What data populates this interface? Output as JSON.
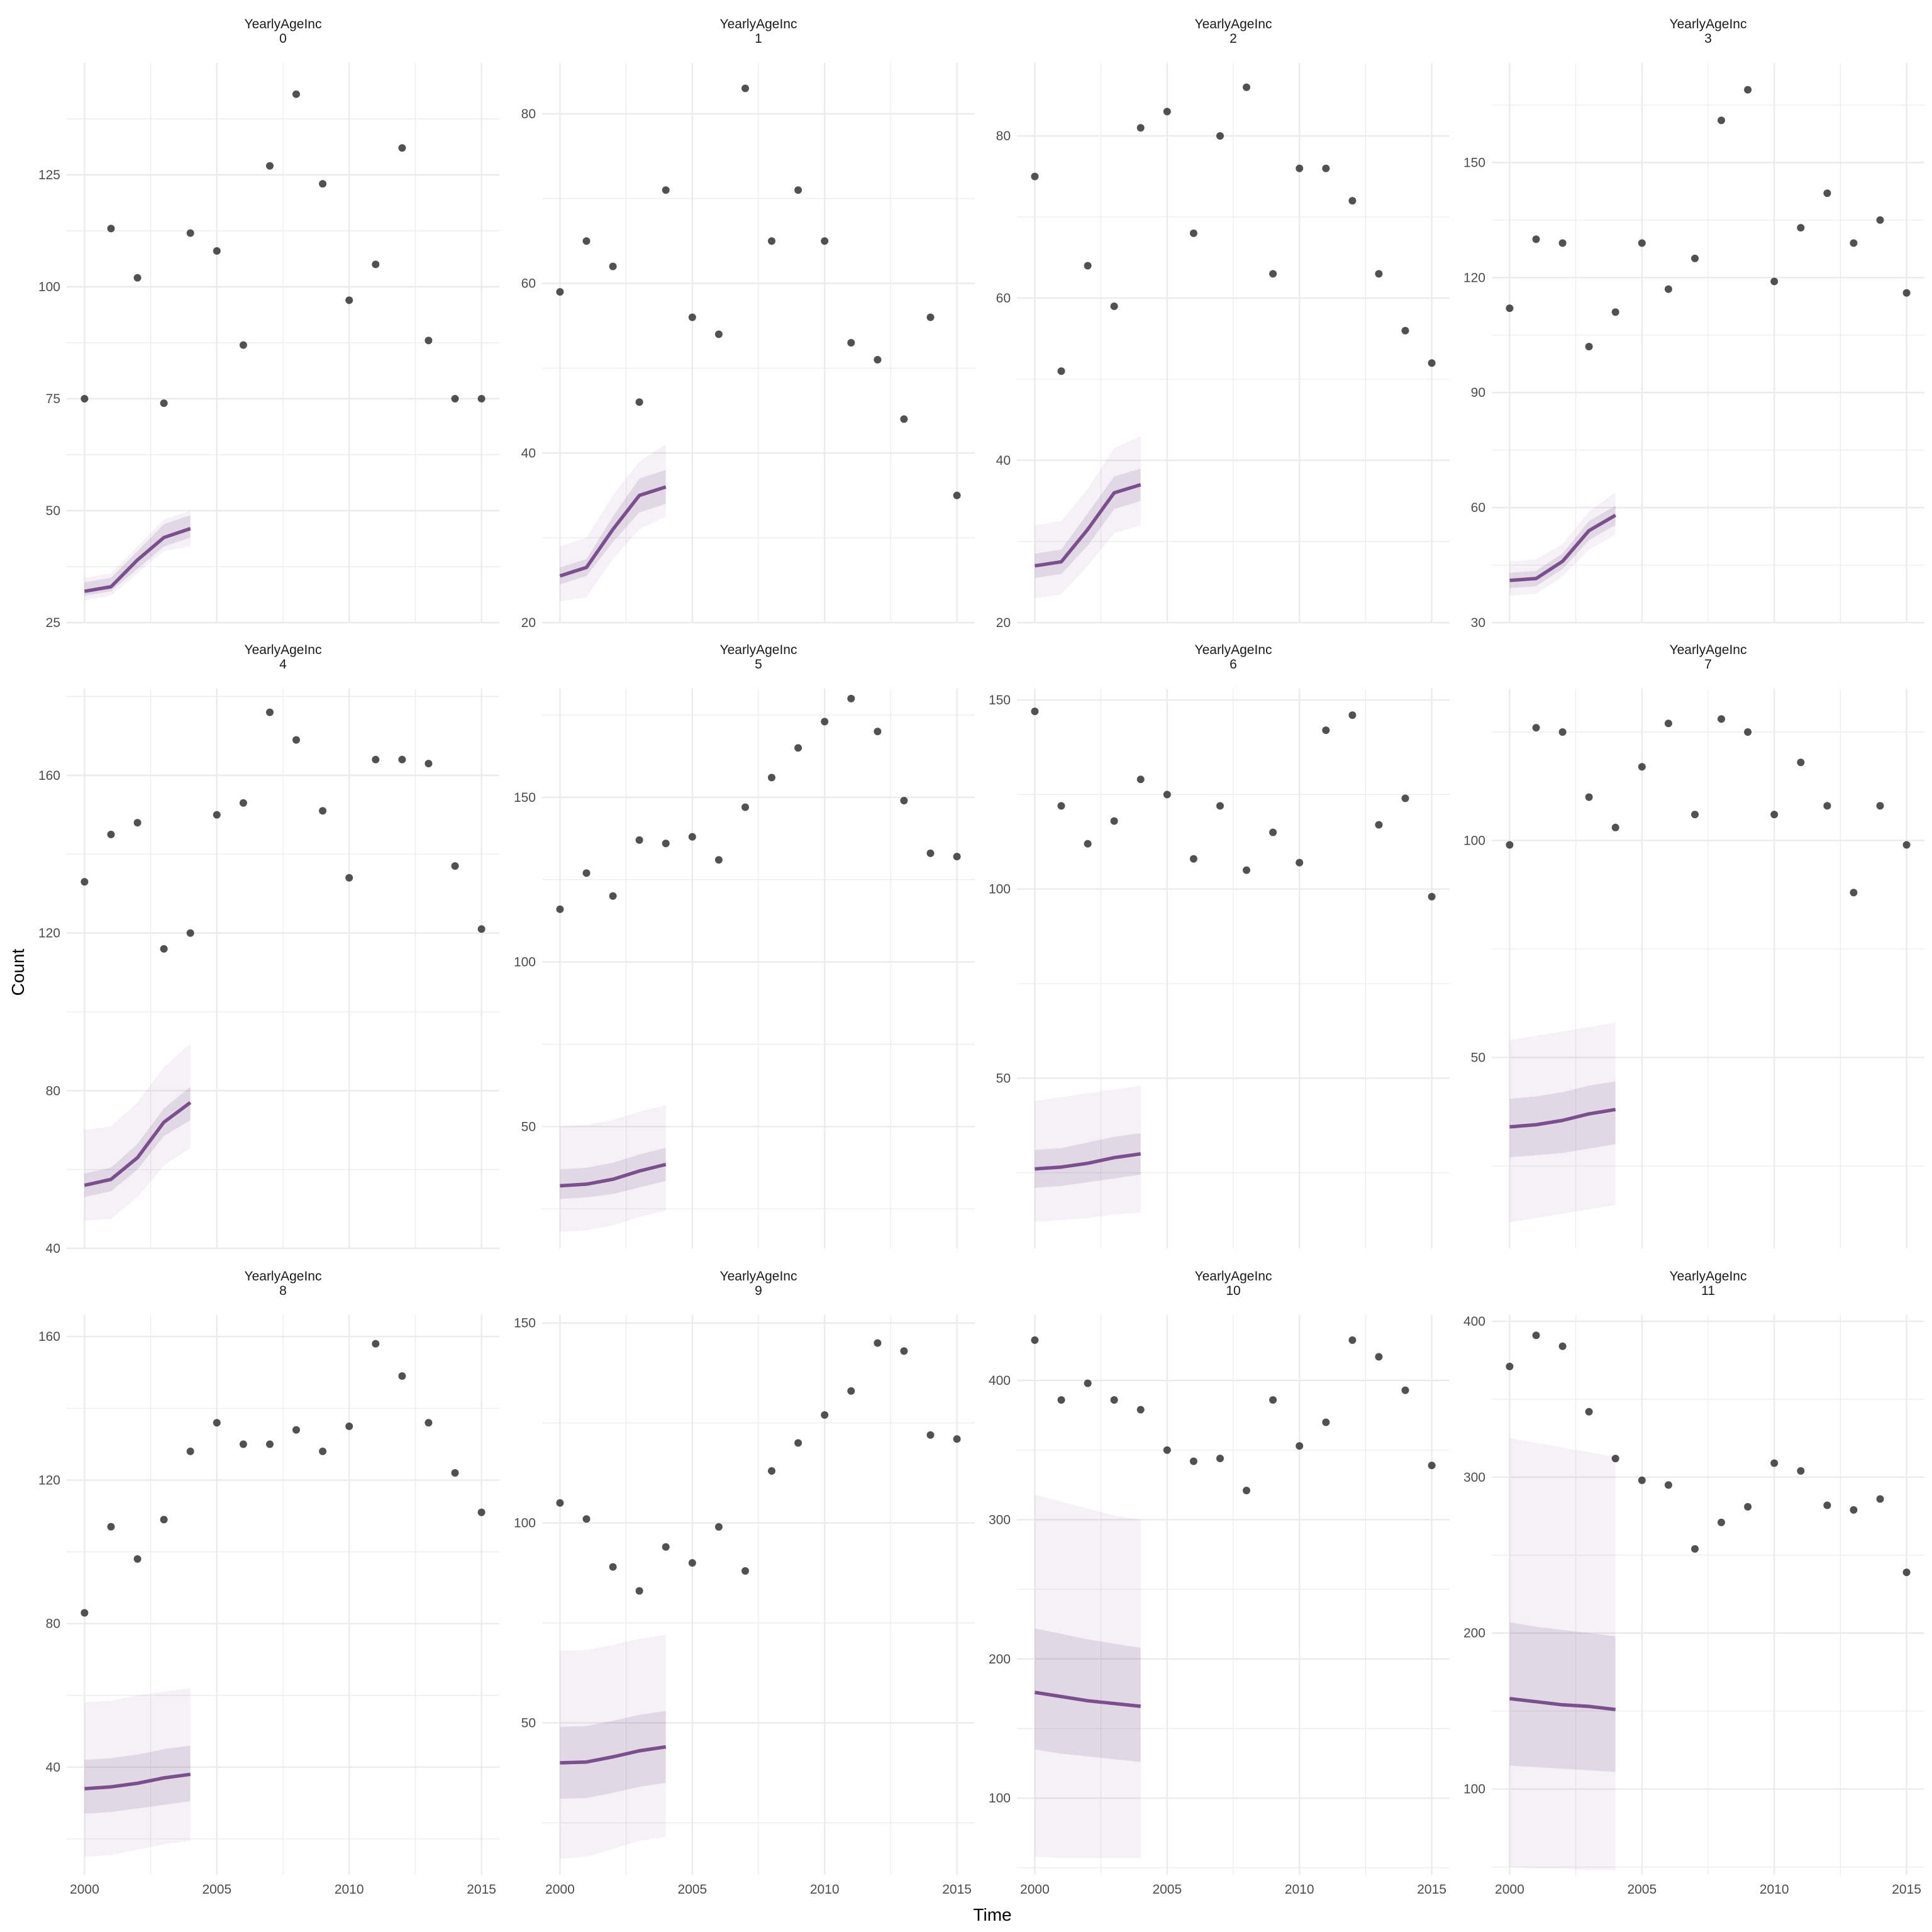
{
  "chart_data": {
    "type": "scatter",
    "layout": "facet_wrap 3 rows x 4 cols, free y scales, shared x axis",
    "xlabel": "Time",
    "ylabel": "Count",
    "xlim": [
      2000,
      2015
    ],
    "x_ticks": [
      2000,
      2005,
      2010,
      2015
    ],
    "grid": true,
    "colors": {
      "points": "#333333",
      "forecast": "#7b4f8e",
      "grid": "#ebebeb"
    },
    "observed_x": [
      2000,
      2001,
      2002,
      2003,
      2004,
      2005,
      2006,
      2007,
      2008,
      2009,
      2010,
      2011,
      2012,
      2013,
      2014,
      2015
    ],
    "forecast_x": [
      2000,
      2001,
      2002,
      2003,
      2004
    ],
    "panels": [
      {
        "strip": "YearlyAgeInc",
        "label": "0",
        "ylim": [
          25,
          150
        ],
        "y_ticks": [
          25,
          50,
          75,
          100,
          125
        ],
        "observed": [
          75,
          113,
          102,
          74,
          112,
          108,
          87,
          127,
          143,
          123,
          97,
          105,
          131,
          88,
          75,
          75
        ],
        "forecast_mean": [
          32,
          33,
          39,
          44,
          46
        ],
        "pi80_low": [
          31,
          32,
          37,
          42,
          44
        ],
        "pi80_high": [
          34,
          35,
          41,
          47,
          49
        ],
        "pi95_low": [
          30,
          31,
          36,
          41,
          42
        ],
        "pi95_high": [
          35,
          36,
          42,
          48,
          50
        ]
      },
      {
        "strip": "YearlyAgeInc",
        "label": "1",
        "ylim": [
          20,
          86
        ],
        "y_ticks": [
          20,
          40,
          60,
          80
        ],
        "observed": [
          59,
          65,
          62,
          46,
          71,
          56,
          54,
          83,
          65,
          71,
          65,
          53,
          51,
          44,
          56,
          35
        ],
        "forecast_mean": [
          25.5,
          26.5,
          31,
          35,
          36
        ],
        "pi80_low": [
          24.5,
          25.5,
          29.5,
          33,
          34
        ],
        "pi80_high": [
          26.5,
          27.5,
          32.5,
          37,
          38
        ],
        "pi95_low": [
          22.5,
          23,
          27.5,
          31,
          32.5
        ],
        "pi95_high": [
          29,
          30,
          35,
          39,
          41
        ]
      },
      {
        "strip": "YearlyAgeInc",
        "label": "2",
        "ylim": [
          20,
          89
        ],
        "y_ticks": [
          20,
          40,
          60,
          80
        ],
        "observed": [
          75,
          51,
          64,
          59,
          81,
          83,
          68,
          80,
          86,
          63,
          76,
          76,
          72,
          63,
          56,
          52
        ],
        "forecast_mean": [
          27,
          27.5,
          31.5,
          36,
          37
        ],
        "pi80_low": [
          25.5,
          26,
          29.5,
          34,
          35
        ],
        "pi80_high": [
          28.5,
          29,
          33.5,
          38,
          39
        ],
        "pi95_low": [
          23,
          23.5,
          27,
          31,
          32
        ],
        "pi95_high": [
          32,
          32.5,
          36.5,
          41.5,
          43
        ]
      },
      {
        "strip": "YearlyAgeInc",
        "label": "3",
        "ylim": [
          30,
          176
        ],
        "y_ticks": [
          30,
          60,
          90,
          120,
          150
        ],
        "observed": [
          112,
          130,
          129,
          102,
          111,
          129,
          117,
          125,
          161,
          169,
          119,
          133,
          142,
          129,
          135,
          116
        ],
        "forecast_mean": [
          41,
          41.5,
          46,
          54,
          58
        ],
        "pi80_low": [
          39,
          39.5,
          44,
          51.5,
          55.5
        ],
        "pi80_high": [
          43,
          43.5,
          48,
          56.5,
          60.5
        ],
        "pi95_low": [
          37,
          37.5,
          42,
          49,
          53
        ],
        "pi95_high": [
          46,
          46.5,
          50.5,
          59,
          64
        ]
      },
      {
        "strip": "YearlyAgeInc",
        "label": "4",
        "ylim": [
          40,
          182
        ],
        "y_ticks": [
          40,
          80,
          120,
          160
        ],
        "observed": [
          133,
          145,
          148,
          116,
          120,
          150,
          153,
          176,
          169,
          151,
          134,
          164,
          164,
          163,
          137,
          121
        ],
        "forecast_mean": [
          56,
          57.5,
          63,
          72,
          77
        ],
        "pi80_low": [
          53,
          54.5,
          60,
          68.5,
          72.5
        ],
        "pi80_high": [
          59,
          60.5,
          66.5,
          75.5,
          81
        ],
        "pi95_low": [
          47,
          47.5,
          53,
          61,
          65.5
        ],
        "pi95_high": [
          70,
          71,
          77,
          86,
          92
        ]
      },
      {
        "strip": "YearlyAgeInc",
        "label": "5",
        "ylim": [
          13,
          183
        ],
        "y_ticks": [
          50,
          100,
          150
        ],
        "observed": [
          116,
          127,
          120,
          137,
          136,
          138,
          131,
          147,
          156,
          165,
          173,
          180,
          170,
          149,
          133,
          132
        ],
        "forecast_mean": [
          32,
          32.5,
          34,
          36.5,
          38.5
        ],
        "pi80_low": [
          28,
          28.5,
          29.5,
          31.5,
          33.5
        ],
        "pi80_high": [
          37,
          37.5,
          39,
          41.5,
          43.5
        ],
        "pi95_low": [
          18,
          18.5,
          20,
          22.5,
          24.5
        ],
        "pi95_high": [
          50,
          50.5,
          52,
          54.5,
          56.5
        ]
      },
      {
        "strip": "YearlyAgeInc",
        "label": "6",
        "ylim": [
          5,
          153
        ],
        "y_ticks": [
          50,
          100,
          150
        ],
        "observed": [
          147,
          122,
          112,
          118,
          129,
          125,
          108,
          122,
          105,
          115,
          107,
          142,
          146,
          117,
          124,
          98
        ],
        "forecast_mean": [
          26,
          26.5,
          27.5,
          29,
          30
        ],
        "pi80_low": [
          21,
          21.5,
          22.5,
          23.5,
          24.5
        ],
        "pi80_high": [
          31,
          31.5,
          33,
          34.5,
          35.5
        ],
        "pi95_low": [
          12,
          12.5,
          13,
          14,
          14.5
        ],
        "pi95_high": [
          44,
          45,
          46,
          47,
          48
        ]
      },
      {
        "strip": "YearlyAgeInc",
        "label": "7",
        "ylim": [
          6,
          135
        ],
        "y_ticks": [
          50,
          100
        ],
        "observed": [
          99,
          126,
          125,
          110,
          103,
          117,
          127,
          106,
          128,
          125,
          106,
          118,
          108,
          88,
          108,
          99
        ],
        "forecast_mean": [
          34,
          34.5,
          35.5,
          37,
          38
        ],
        "pi80_low": [
          27,
          27.5,
          28,
          29,
          30
        ],
        "pi80_high": [
          40.5,
          41,
          42,
          43.5,
          44.5
        ],
        "pi95_low": [
          12,
          13,
          14,
          15,
          16
        ],
        "pi95_high": [
          54,
          55,
          56,
          57,
          58
        ]
      },
      {
        "strip": "YearlyAgeInc",
        "label": "8",
        "ylim": [
          10,
          166
        ],
        "y_ticks": [
          40,
          80,
          120,
          160
        ],
        "observed": [
          83,
          107,
          98,
          109,
          128,
          136,
          130,
          130,
          134,
          128,
          135,
          158,
          149,
          136,
          122,
          111
        ],
        "forecast_mean": [
          34,
          34.5,
          35.5,
          37,
          38
        ],
        "pi80_low": [
          27,
          27.5,
          28.5,
          29.5,
          30.5
        ],
        "pi80_high": [
          42,
          42.5,
          43.5,
          45,
          46
        ],
        "pi95_low": [
          15,
          15.5,
          17,
          18.5,
          19.5
        ],
        "pi95_high": [
          58,
          58.5,
          60,
          61,
          62
        ]
      },
      {
        "strip": "YearlyAgeInc",
        "label": "9",
        "ylim": [
          12,
          152
        ],
        "y_ticks": [
          50,
          100,
          150
        ],
        "observed": [
          105,
          101,
          89,
          83,
          94,
          90,
          99,
          88,
          113,
          120,
          127,
          133,
          145,
          143,
          122,
          121
        ],
        "forecast_mean": [
          40,
          40.2,
          41.5,
          43,
          44
        ],
        "pi80_low": [
          31,
          31.2,
          32.5,
          34,
          35
        ],
        "pi80_high": [
          49,
          49.2,
          50.5,
          52,
          53
        ],
        "pi95_low": [
          16,
          16.5,
          18.5,
          20.5,
          21.5
        ],
        "pi95_high": [
          68,
          68.2,
          69.5,
          71,
          72
        ]
      },
      {
        "strip": "YearlyAgeInc",
        "label": "10",
        "ylim": [
          45,
          447
        ],
        "y_ticks": [
          100,
          200,
          300,
          400
        ],
        "observed": [
          429,
          386,
          398,
          386,
          379,
          350,
          342,
          344,
          321,
          386,
          353,
          370,
          429,
          417,
          393,
          339
        ],
        "forecast_mean": [
          176,
          173,
          170,
          168,
          166
        ],
        "pi80_low": [
          135,
          132,
          130,
          128,
          126
        ],
        "pi80_high": [
          222,
          218,
          214,
          211,
          208
        ],
        "pi95_low": [
          58,
          57,
          57,
          57,
          57
        ],
        "pi95_high": [
          318,
          313,
          308,
          303,
          300
        ]
      },
      {
        "strip": "YearlyAgeInc",
        "label": "11",
        "ylim": [
          45,
          404
        ],
        "y_ticks": [
          100,
          200,
          300,
          400
        ],
        "observed": [
          371,
          391,
          384,
          342,
          312,
          298,
          295,
          254,
          271,
          281,
          309,
          304,
          282,
          279,
          286,
          239
        ],
        "forecast_mean": [
          158,
          156,
          154,
          153,
          151
        ],
        "pi80_low": [
          115,
          114,
          113,
          112,
          111
        ],
        "pi80_high": [
          207,
          204,
          202,
          200,
          198
        ],
        "pi95_low": [
          50,
          49,
          49,
          48,
          48
        ],
        "pi95_high": [
          325,
          322,
          319,
          316,
          313
        ]
      }
    ]
  }
}
